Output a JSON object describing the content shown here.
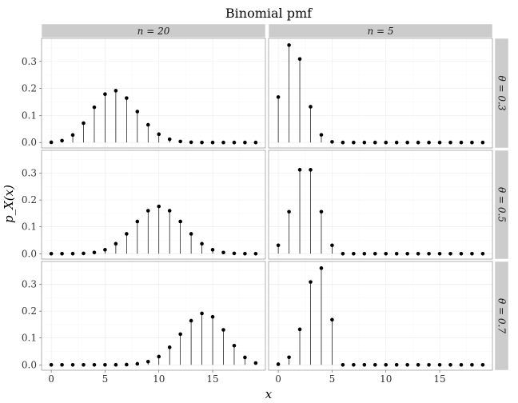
{
  "chart_data": {
    "type": "stem",
    "title": "Binomial pmf",
    "xlabel": "x",
    "ylabel": "p_X(x)",
    "xlim": [
      -0.9,
      19.9
    ],
    "ylim": [
      -0.02,
      0.385
    ],
    "x_ticks": [
      0,
      5,
      10,
      15
    ],
    "y_ticks": [
      0.0,
      0.1,
      0.2,
      0.3
    ],
    "y_tick_labels": [
      "0.0",
      "0.1",
      "0.2",
      "0.3"
    ],
    "x_tick_labels": [
      "0",
      "5",
      "10",
      "15"
    ],
    "columns": [
      {
        "label": "n = 20",
        "var": "n",
        "value": "20"
      },
      {
        "label": "n = 5",
        "var": "n",
        "value": "5"
      }
    ],
    "rows": [
      {
        "label": "θ = 0.3",
        "var": "θ",
        "value": "0.3"
      },
      {
        "label": "θ = 0.5",
        "var": "θ",
        "value": "0.5"
      },
      {
        "label": "θ = 0.7",
        "var": "θ",
        "value": "0.7"
      }
    ],
    "x": [
      0,
      1,
      2,
      3,
      4,
      5,
      6,
      7,
      8,
      9,
      10,
      11,
      12,
      13,
      14,
      15,
      16,
      17,
      18,
      19
    ],
    "panels": [
      {
        "row": 0,
        "col": 0,
        "values": [
          0.0008,
          0.0068,
          0.0278,
          0.0716,
          0.1304,
          0.1789,
          0.1916,
          0.1643,
          0.1144,
          0.0654,
          0.0308,
          0.012,
          0.0039,
          0.001,
          0.0002,
          0,
          0,
          0,
          0,
          0
        ]
      },
      {
        "row": 0,
        "col": 1,
        "values": [
          0.1681,
          0.3602,
          0.3087,
          0.1323,
          0.0284,
          0.0024,
          0,
          0,
          0,
          0,
          0,
          0,
          0,
          0,
          0,
          0,
          0,
          0,
          0,
          0
        ]
      },
      {
        "row": 1,
        "col": 0,
        "values": [
          0,
          0,
          0.0002,
          0.0011,
          0.0046,
          0.0148,
          0.037,
          0.0739,
          0.1201,
          0.1602,
          0.1762,
          0.1602,
          0.1201,
          0.0739,
          0.037,
          0.0148,
          0.0046,
          0.0011,
          0.0002,
          0
        ]
      },
      {
        "row": 1,
        "col": 1,
        "values": [
          0.0313,
          0.1563,
          0.3125,
          0.3125,
          0.1563,
          0.0313,
          0,
          0,
          0,
          0,
          0,
          0,
          0,
          0,
          0,
          0,
          0,
          0,
          0,
          0
        ]
      },
      {
        "row": 2,
        "col": 0,
        "values": [
          0,
          0,
          0,
          0,
          0,
          0,
          0.0002,
          0.001,
          0.0039,
          0.012,
          0.0308,
          0.0654,
          0.1144,
          0.1643,
          0.1916,
          0.1789,
          0.1304,
          0.0716,
          0.0278,
          0.0068
        ]
      },
      {
        "row": 2,
        "col": 1,
        "values": [
          0.0024,
          0.0284,
          0.1323,
          0.3087,
          0.3602,
          0.1681,
          0,
          0,
          0,
          0,
          0,
          0,
          0,
          0,
          0,
          0,
          0,
          0,
          0,
          0
        ]
      }
    ]
  }
}
